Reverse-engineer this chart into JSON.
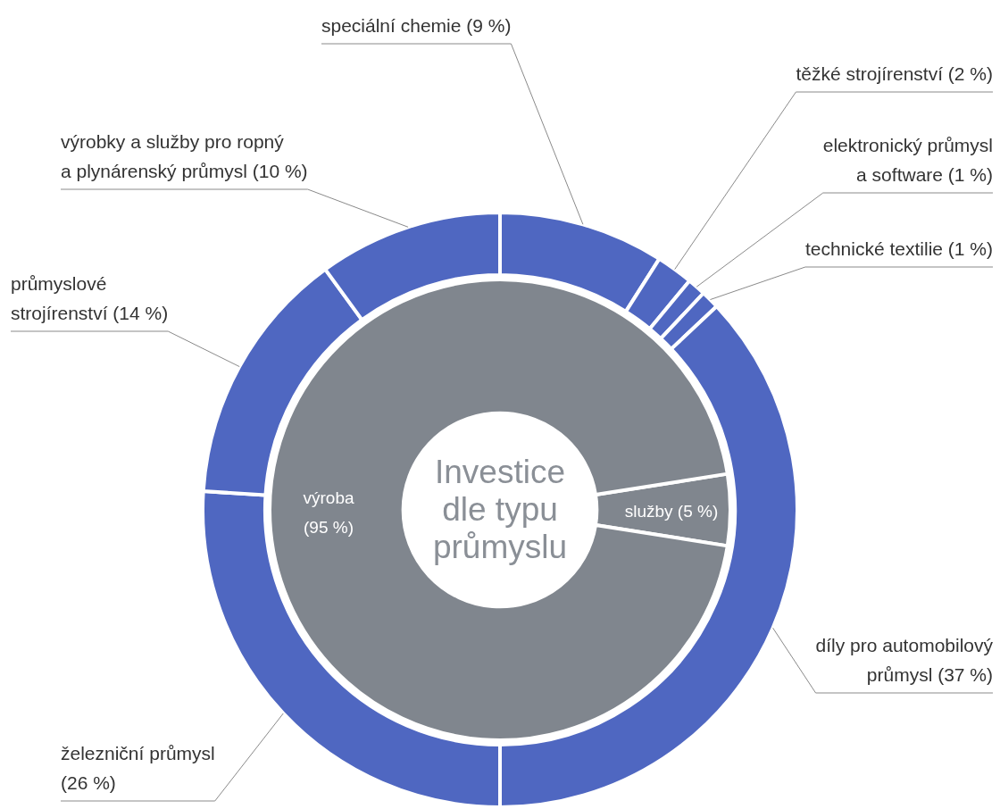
{
  "chart_data": [
    {
      "type": "donut",
      "title": "Investice dle typu průmyslu",
      "categories": [
        "speciální chemie (9 %)",
        "těžké strojírenství (2 %)",
        "elektronický průmysl a software (1 %)",
        "technické textilie (1 %)",
        "díly pro automobilový průmysl (37 %)",
        "železniční průmysl (26 %)",
        "průmyslové strojírenství (14 %)",
        "výrobky a služby pro ropný a plynárenský průmysl (10 %)"
      ],
      "values": [
        9,
        2,
        1,
        1,
        37,
        26,
        14,
        10
      ],
      "colors": [
        "#4f67c1",
        "#4f67c1",
        "#4f67c1",
        "#4f67c1",
        "#4f67c1",
        "#4f67c1",
        "#4f67c1",
        "#4f67c1"
      ]
    },
    {
      "type": "donut",
      "categories": [
        "služby (5 %)",
        "výroba (95 %)"
      ],
      "values": [
        5,
        95
      ],
      "colors": [
        "#80868e",
        "#80868e"
      ]
    }
  ]
}
